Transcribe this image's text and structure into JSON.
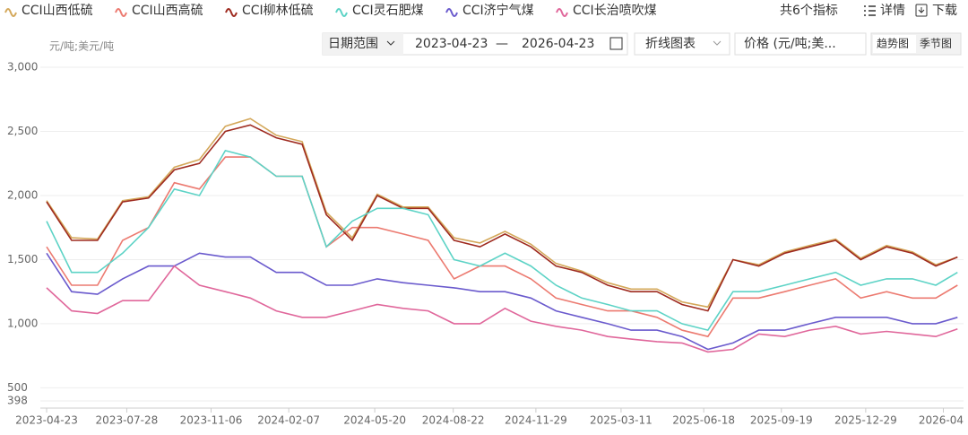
{
  "ui": {
    "count": "共6个指标",
    "detail": "详情",
    "download": "下载",
    "date_range_label": "日期范围",
    "date_start": "2023-04-23",
    "date_sep": "—",
    "date_end": "2026-04-23",
    "chart_select": "折线图表",
    "metric_select": "价格 (元/吨;美...",
    "tabs": [
      "趋势图",
      "季节图"
    ]
  },
  "chart_data": {
    "type": "line",
    "y_unit": "元/吨;美元/吨",
    "x": [
      "2023-04-23",
      "2023-05-23",
      "2023-06-23",
      "2023-07-23",
      "2023-08-23",
      "2023-09-23",
      "2023-10-23",
      "2023-11-23",
      "2023-12-23",
      "2024-01-23",
      "2024-02-23",
      "2024-03-23",
      "2024-04-23",
      "2024-05-23",
      "2024-06-23",
      "2024-07-23",
      "2024-08-23",
      "2024-09-23",
      "2024-10-23",
      "2024-11-23",
      "2024-12-23",
      "2025-01-23",
      "2025-02-23",
      "2025-03-23",
      "2025-04-23",
      "2025-05-23",
      "2025-06-23",
      "2025-07-23",
      "2025-08-23",
      "2025-09-23",
      "2025-10-23",
      "2025-11-23",
      "2025-12-23",
      "2026-01-23",
      "2026-02-23",
      "2026-03-23",
      "2026-04-18"
    ],
    "xlim": [
      "2023-04-23",
      "2026-04-23"
    ],
    "xticks": [
      "2023-04-23",
      "2023-07-28",
      "2023-11-06",
      "2024-02-07",
      "2024-05-20",
      "2024-08-22",
      "2024-11-29",
      "2025-03-11",
      "2025-06-18",
      "2025-09-19",
      "2025-12-29",
      "2026-04"
    ],
    "ylim": [
      398,
      3000
    ],
    "yticks": [
      398,
      500,
      {
        "value": 1000,
        "label": "1,000"
      },
      {
        "value": 1500,
        "label": "1,500"
      },
      {
        "value": 2000,
        "label": "2,000"
      },
      {
        "value": 2500,
        "label": "2,500"
      },
      {
        "value": 3000,
        "label": "3,000"
      }
    ],
    "grid": true,
    "series": [
      {
        "name": "CCI山西低硫",
        "color": "#d4a85a",
        "values": [
          1960,
          1670,
          1660,
          1960,
          1990,
          2220,
          2280,
          2540,
          2600,
          2470,
          2420,
          1870,
          1670,
          2010,
          1910,
          1910,
          1670,
          1630,
          1720,
          1620,
          1470,
          1410,
          1320,
          1270,
          1270,
          1170,
          1130,
          1500,
          1460,
          1560,
          1610,
          1660,
          1510,
          1610,
          1560,
          1460,
          1520
        ]
      },
      {
        "name": "CCI山西高硫",
        "color": "#ec7a70",
        "values": [
          1600,
          1300,
          1300,
          1650,
          1750,
          2100,
          2050,
          2300,
          2300,
          2150,
          2150,
          1600,
          1750,
          1750,
          1700,
          1650,
          1350,
          1450,
          1450,
          1350,
          1200,
          1150,
          1100,
          1100,
          1050,
          950,
          900,
          1200,
          1200,
          1250,
          1300,
          1350,
          1200,
          1250,
          1200,
          1200,
          1300
        ]
      },
      {
        "name": "CCI柳林低硫",
        "color": "#9e2a1f",
        "values": [
          1950,
          1650,
          1650,
          1950,
          1980,
          2200,
          2250,
          2500,
          2550,
          2450,
          2400,
          1850,
          1650,
          2000,
          1900,
          1900,
          1650,
          1600,
          1700,
          1600,
          1450,
          1400,
          1300,
          1250,
          1250,
          1150,
          1100,
          1500,
          1450,
          1550,
          1600,
          1650,
          1500,
          1600,
          1550,
          1450,
          1520
        ]
      },
      {
        "name": "CCI灵石肥煤",
        "color": "#5dd3c6",
        "values": [
          1800,
          1400,
          1400,
          1550,
          1750,
          2050,
          2000,
          2350,
          2300,
          2150,
          2150,
          1600,
          1800,
          1900,
          1900,
          1850,
          1500,
          1450,
          1550,
          1450,
          1300,
          1200,
          1150,
          1100,
          1100,
          1000,
          950,
          1250,
          1250,
          1300,
          1350,
          1400,
          1300,
          1350,
          1350,
          1300,
          1400
        ]
      },
      {
        "name": "CCI济宁气煤",
        "color": "#6a5acd",
        "values": [
          1550,
          1250,
          1230,
          1350,
          1450,
          1450,
          1550,
          1520,
          1520,
          1400,
          1400,
          1300,
          1300,
          1350,
          1320,
          1300,
          1280,
          1250,
          1250,
          1200,
          1100,
          1050,
          1000,
          950,
          950,
          900,
          800,
          850,
          950,
          950,
          1000,
          1050,
          1050,
          1050,
          1000,
          1000,
          1050
        ]
      },
      {
        "name": "CCI长治喷吹煤",
        "color": "#e0679b",
        "values": [
          1280,
          1100,
          1080,
          1180,
          1180,
          1450,
          1300,
          1250,
          1200,
          1100,
          1050,
          1050,
          1100,
          1150,
          1120,
          1100,
          1000,
          1000,
          1120,
          1020,
          980,
          950,
          900,
          880,
          860,
          850,
          780,
          800,
          920,
          900,
          950,
          980,
          920,
          940,
          920,
          900,
          960
        ]
      }
    ]
  }
}
